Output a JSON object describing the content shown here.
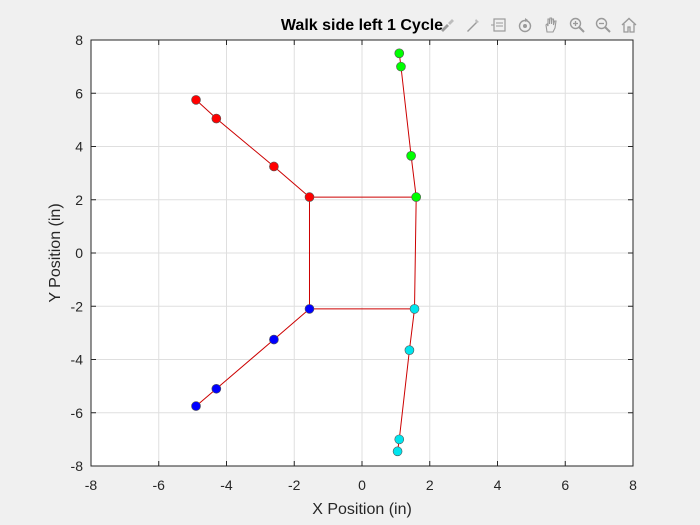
{
  "chart_data": {
    "type": "scatter",
    "title": "Walk side left 1 Cycle",
    "xlabel": "X Position (in)",
    "ylabel": "Y Position (in)",
    "xlim": [
      -8,
      8
    ],
    "ylim": [
      -8,
      8
    ],
    "xticks": [
      -8,
      -6,
      -4,
      -2,
      0,
      2,
      4,
      6,
      8
    ],
    "yticks": [
      -8,
      -6,
      -4,
      -2,
      0,
      2,
      4,
      6,
      8
    ],
    "grid": true,
    "body": [
      [
        -1.55,
        2.1
      ],
      [
        1.6,
        2.1
      ],
      [
        1.55,
        -2.1
      ],
      [
        -1.55,
        -2.1
      ]
    ],
    "legs": [
      {
        "color": "#ff0000",
        "points": [
          [
            -1.55,
            2.1
          ],
          [
            -2.6,
            3.25
          ],
          [
            -4.3,
            5.05
          ],
          [
            -4.9,
            5.75
          ]
        ]
      },
      {
        "color": "#00ff00",
        "points": [
          [
            1.6,
            2.1
          ],
          [
            1.45,
            3.65
          ],
          [
            1.15,
            7.0
          ],
          [
            1.1,
            7.5
          ]
        ]
      },
      {
        "color": "#00e5ee",
        "points": [
          [
            1.55,
            -2.1
          ],
          [
            1.4,
            -3.65
          ],
          [
            1.1,
            -7.0
          ],
          [
            1.05,
            -7.45
          ]
        ]
      },
      {
        "color": "#0000ff",
        "points": [
          [
            -1.55,
            -2.1
          ],
          [
            -2.6,
            -3.25
          ],
          [
            -4.3,
            -5.1
          ],
          [
            -4.9,
            -5.75
          ]
        ]
      }
    ],
    "line_color": "#cc0000"
  },
  "toolbar": {
    "icons": [
      "brush-data-icon",
      "datatip-icon",
      "legend-icon",
      "rotate-3d-icon",
      "pan-icon",
      "zoom-in-icon",
      "zoom-out-icon",
      "home-icon"
    ]
  }
}
